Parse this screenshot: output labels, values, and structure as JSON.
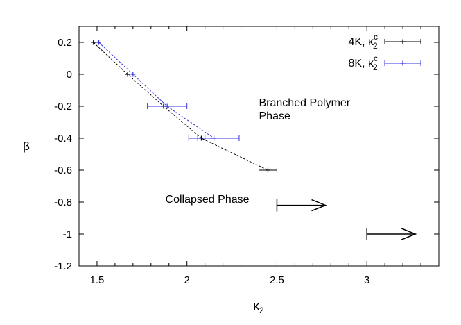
{
  "chart_data": {
    "type": "scatter",
    "xlabel": "κ₂",
    "ylabel": "β",
    "xlim": [
      1.4,
      3.4
    ],
    "ylim": [
      -1.2,
      0.3
    ],
    "xticks": [
      "1.5",
      "2",
      "2.5",
      "3"
    ],
    "xtick_values": [
      1.5,
      2,
      2.5,
      3
    ],
    "yticks": [
      "0.2",
      "0",
      "-0.2",
      "-0.4",
      "-0.6",
      "-0.8",
      "-1",
      "-1.2"
    ],
    "ytick_values": [
      0.2,
      0,
      -0.2,
      -0.4,
      -0.6,
      -0.8,
      -1,
      -1.2
    ],
    "grid": false,
    "legend_position": "top-right",
    "series": [
      {
        "name": "4K, κ₂ᶜ",
        "legend_main": "4K, κ",
        "legend_sub": "2",
        "legend_sup": "c",
        "color": "#000000",
        "x": [
          1.48,
          1.67,
          1.87,
          2.08,
          2.45
        ],
        "y": [
          0.2,
          0.0,
          -0.2,
          -0.4,
          -0.6
        ],
        "xerr": [
          0.0,
          0.0,
          0.0,
          0.02,
          0.05
        ]
      },
      {
        "name": "8K, κ₂ᶜ",
        "legend_main": "8K, κ",
        "legend_sub": "2",
        "legend_sup": "c",
        "color": "#3333dd",
        "x": [
          1.51,
          1.7,
          1.89,
          2.15
        ],
        "y": [
          0.2,
          0.0,
          -0.2,
          -0.4
        ],
        "xerr": [
          0.0,
          0.0,
          0.11,
          0.14
        ]
      }
    ],
    "annotations": [
      {
        "text_lines": [
          "Branched Polymer",
          "Phase"
        ],
        "x": 2.4,
        "y": -0.2
      },
      {
        "text_lines": [
          "Collapsed Phase"
        ],
        "x": 1.88,
        "y": -0.805
      }
    ],
    "arrows": [
      {
        "x_from": 2.5,
        "x_to": 2.77,
        "y": -0.82
      },
      {
        "x_from": 3.0,
        "x_to": 3.27,
        "y": -1.0
      }
    ]
  }
}
